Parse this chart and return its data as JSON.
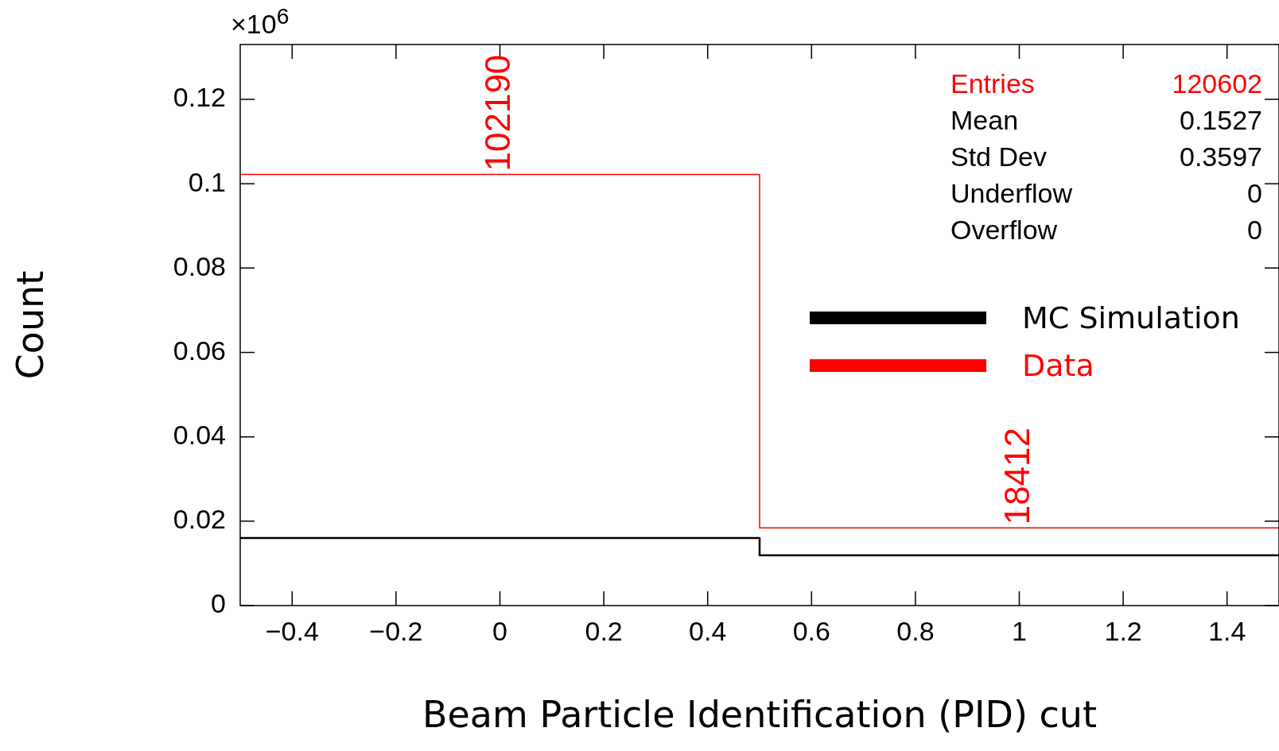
{
  "chart_data": {
    "type": "histogram",
    "xlabel": "Beam Particle Identification (PID) cut",
    "ylabel": "Count",
    "bins": [
      -0.5,
      0.5,
      1.5
    ],
    "series": [
      {
        "name": "MC Simulation",
        "color": "#000000",
        "values": [
          0.016,
          0.0119
        ]
      },
      {
        "name": "Data",
        "color": "#ff0000",
        "values": [
          0.1022,
          0.0184
        ]
      }
    ],
    "xlim": [
      -0.5,
      1.5
    ],
    "xticks": [
      {
        "value": -0.4,
        "label": "−0.4"
      },
      {
        "value": -0.2,
        "label": "−0.2"
      },
      0,
      0.2,
      0.4,
      0.6,
      0.8,
      1,
      1.2,
      1.4
    ],
    "ylim": [
      0,
      0.133
    ],
    "yticks": [
      0,
      0.02,
      0.04,
      0.06,
      0.08,
      0.1,
      0.12
    ],
    "legend": "right",
    "annotations": [
      "×10$^{6}$",
      "Entries",
      "120602",
      "Mean",
      "0.1527",
      "Std Dev",
      "0.3597",
      "Underflow",
      "0",
      "Overflow",
      "0",
      {
        "text": "102190",
        "x": 0,
        "y": 0.1022
      },
      {
        "text": "18412",
        "x": 1,
        "y": 0.0184
      }
    ]
  }
}
